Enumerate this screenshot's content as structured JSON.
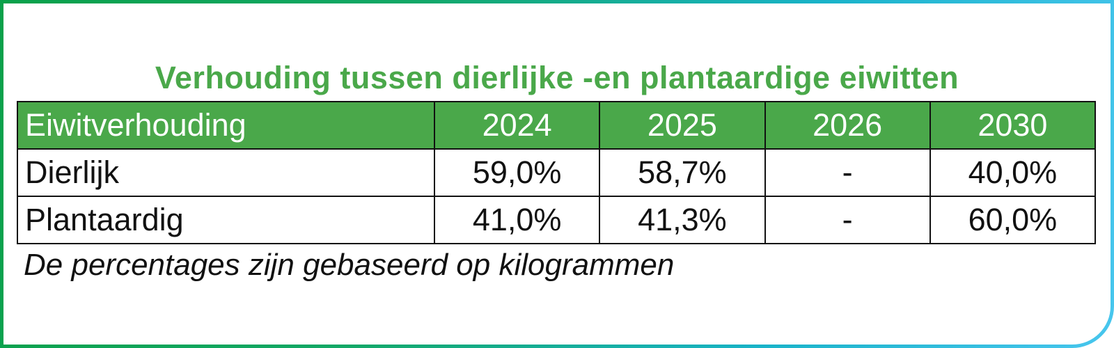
{
  "title": "Verhouding tussen dierlijke -en plantaardige eiwitten",
  "table": {
    "headers": [
      "Eiwitverhouding",
      "2024",
      "2025",
      "2026",
      "2030"
    ],
    "rows": [
      [
        "Dierlijk",
        "59,0%",
        "58,7%",
        "-",
        "40,0%"
      ],
      [
        "Plantaardig",
        "41,0%",
        "41,3%",
        "-",
        "60,0%"
      ]
    ]
  },
  "footnote": "De percentages zijn gebaseerd op kilogrammen",
  "colors": {
    "green": "#4aa84a",
    "frame_start": "#0aa14a",
    "frame_end": "#48c6ee"
  }
}
